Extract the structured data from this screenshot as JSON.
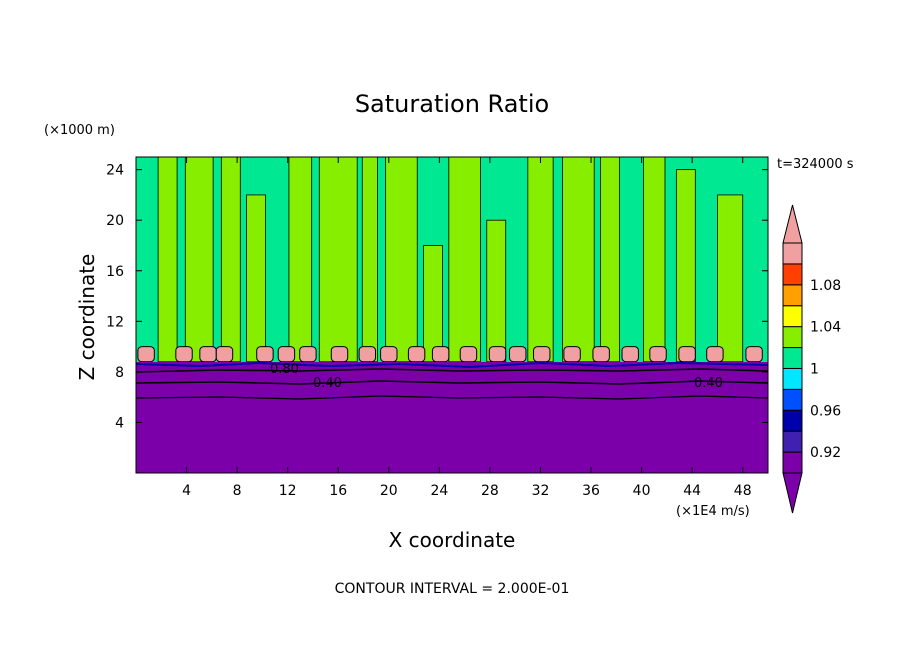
{
  "chart_data": {
    "type": "heatmap",
    "title": "Saturation Ratio",
    "xlabel": "X coordinate",
    "ylabel": "Z coordinate",
    "x_unit": "(×1E4 m/s)",
    "y_unit": "(×1000 m)",
    "time_label": "t=324000 s",
    "footer": "CONTOUR INTERVAL = 2.000E-01",
    "xlim": [
      0,
      50
    ],
    "ylim": [
      0,
      25
    ],
    "x_ticks": [
      "4",
      "8",
      "12",
      "16",
      "20",
      "24",
      "28",
      "32",
      "36",
      "40",
      "44",
      "48"
    ],
    "y_ticks": [
      "4",
      "8",
      "12",
      "16",
      "20",
      "24"
    ],
    "contour_labels": [
      "0.80",
      "0.40",
      "0.40"
    ],
    "colorbar": {
      "levels": [
        0.9,
        0.92,
        0.94,
        0.96,
        0.98,
        1.0,
        1.02,
        1.04,
        1.06,
        1.08,
        1.1
      ],
      "tick_labels": [
        "0.92",
        "0.96",
        "1",
        "1.04",
        "1.08"
      ],
      "colors": [
        "#7b00aa",
        "#4020b0",
        "#0000aa",
        "#0050ff",
        "#00e8ff",
        "#00e892",
        "#88ee00",
        "#ffff00",
        "#ffa000",
        "#ff4000",
        "#f0a0a0"
      ]
    },
    "regions": {
      "below_0_9": "#7b00aa",
      "upper_background": "#00e892",
      "upper_plumes": "#88ee00",
      "cloud_tops": "#f0a0a0"
    }
  }
}
